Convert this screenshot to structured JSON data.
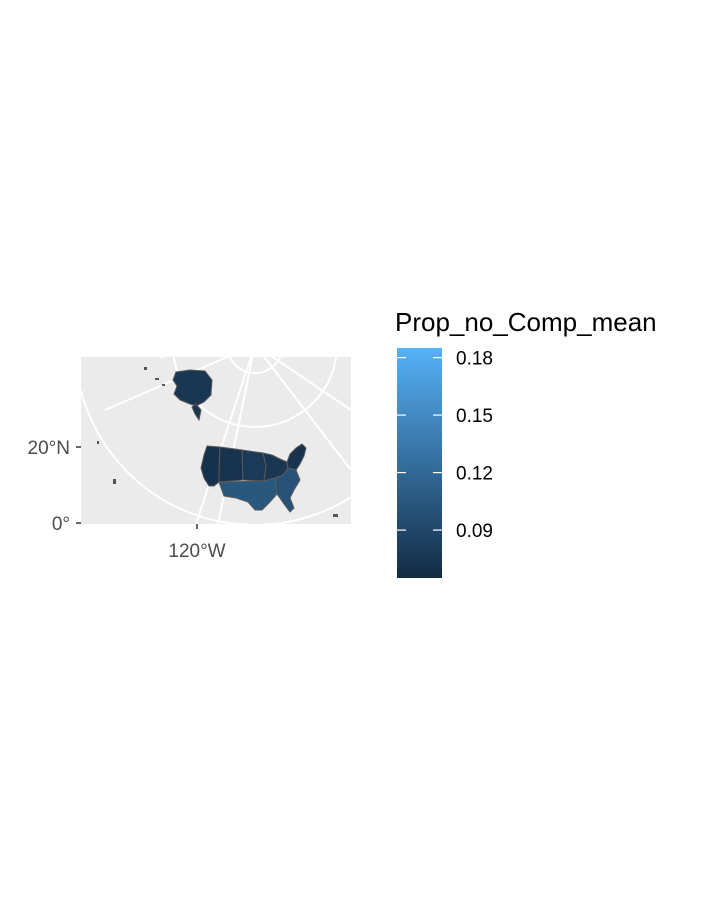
{
  "map": {
    "y_ticks": [
      "20°N",
      "0°"
    ],
    "x_ticks": [
      "120°W"
    ],
    "background_color": "#ebebeb",
    "graticule_color": "#ffffff",
    "regions": [
      {
        "name": "Alaska",
        "value": 0.075
      },
      {
        "name": "West",
        "value": 0.07
      },
      {
        "name": "Mountain",
        "value": 0.072
      },
      {
        "name": "West North Central",
        "value": 0.078
      },
      {
        "name": "East North Central",
        "value": 0.075
      },
      {
        "name": "Northeast",
        "value": 0.072
      },
      {
        "name": "South",
        "value": 0.105
      },
      {
        "name": "Southeast",
        "value": 0.1
      }
    ]
  },
  "legend": {
    "title": "Prop_no_Comp_mean",
    "labels": [
      "0.18",
      "0.15",
      "0.12",
      "0.09"
    ],
    "tick_values": [
      0.18,
      0.15,
      0.12,
      0.09
    ],
    "range": [
      0.065,
      0.185
    ],
    "color_low": "#132b43",
    "color_high": "#56b1f7"
  }
}
